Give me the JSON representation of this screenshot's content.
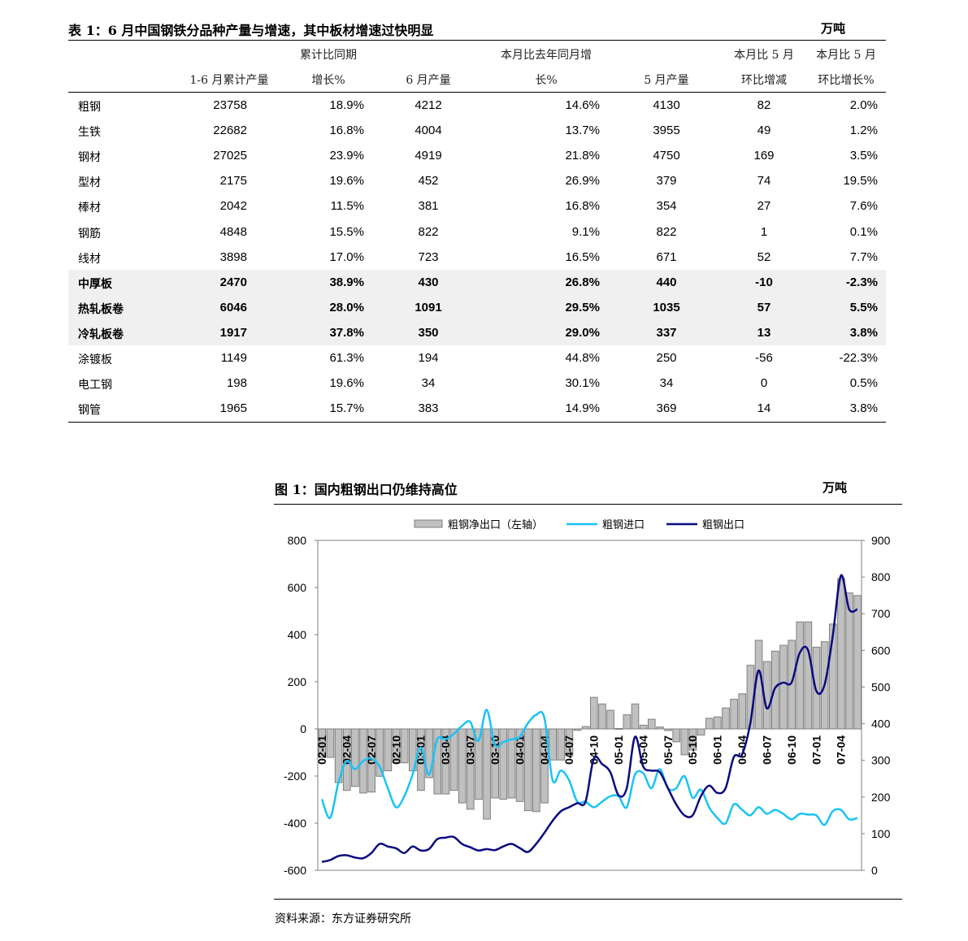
{
  "table": {
    "title": "表 1：6 月中国钢铁分品种产量与增速，其中板材增速过快明显",
    "unit": "万吨",
    "headers_top": [
      "",
      "",
      "累计比同期",
      "",
      "本月比去年同月增",
      "",
      "本月比 5 月",
      "本月比 5 月"
    ],
    "headers_bottom": [
      "",
      "1-6 月累计产量",
      "增长%",
      "6 月产量",
      "长%",
      "5 月产量",
      "环比增减",
      "环比增长%"
    ],
    "rows": [
      {
        "name": "粗钢",
        "cells": [
          "23758",
          "18.9%",
          "4212",
          "14.6%",
          "4130",
          "82",
          "2.0%"
        ],
        "highlight": false
      },
      {
        "name": "生铁",
        "cells": [
          "22682",
          "16.8%",
          "4004",
          "13.7%",
          "3955",
          "49",
          "1.2%"
        ],
        "highlight": false
      },
      {
        "name": "钢材",
        "cells": [
          "27025",
          "23.9%",
          "4919",
          "21.8%",
          "4750",
          "169",
          "3.5%"
        ],
        "highlight": false
      },
      {
        "name": "型材",
        "cells": [
          "2175",
          "19.6%",
          "452",
          "26.9%",
          "379",
          "74",
          "19.5%"
        ],
        "highlight": false
      },
      {
        "name": "棒材",
        "cells": [
          "2042",
          "11.5%",
          "381",
          "16.8%",
          "354",
          "27",
          "7.6%"
        ],
        "highlight": false
      },
      {
        "name": "钢筋",
        "cells": [
          "4848",
          "15.5%",
          "822",
          "9.1%",
          "822",
          "1",
          "0.1%"
        ],
        "highlight": false
      },
      {
        "name": "线材",
        "cells": [
          "3898",
          "17.0%",
          "723",
          "16.5%",
          "671",
          "52",
          "7.7%"
        ],
        "highlight": false
      },
      {
        "name": "中厚板",
        "cells": [
          "2470",
          "38.9%",
          "430",
          "26.8%",
          "440",
          "-10",
          "-2.3%"
        ],
        "highlight": true
      },
      {
        "name": "热轧板卷",
        "cells": [
          "6046",
          "28.0%",
          "1091",
          "29.5%",
          "1035",
          "57",
          "5.5%"
        ],
        "highlight": true
      },
      {
        "name": "冷轧板卷",
        "cells": [
          "1917",
          "37.8%",
          "350",
          "29.0%",
          "337",
          "13",
          "3.8%"
        ],
        "highlight": true
      },
      {
        "name": "涂镀板",
        "cells": [
          "1149",
          "61.3%",
          "194",
          "44.8%",
          "250",
          "-56",
          "-22.3%"
        ],
        "highlight": false
      },
      {
        "name": "电工钢",
        "cells": [
          "198",
          "19.6%",
          "34",
          "30.1%",
          "34",
          "0",
          "0.5%"
        ],
        "highlight": false
      },
      {
        "name": "钢管",
        "cells": [
          "1965",
          "15.7%",
          "383",
          "14.9%",
          "369",
          "14",
          "3.8%"
        ],
        "highlight": false
      }
    ]
  },
  "figure": {
    "title": "图 1：国内粗钢出口仍维持高位",
    "unit": "万吨",
    "source": "资料来源：东方证券研究所"
  },
  "chart_data": {
    "type": "bar+line",
    "legend_placement": "top",
    "colors": {
      "bars": "#c0c0c0",
      "bar_border": "#808080",
      "import": "#19c3f5",
      "export": "#0a0a80"
    },
    "left_axis": {
      "ylim": [
        -600,
        800
      ],
      "ticks": [
        -600,
        -400,
        -200,
        0,
        200,
        400,
        600,
        800
      ]
    },
    "right_axis": {
      "ylim": [
        0,
        900
      ],
      "ticks": [
        0,
        100,
        200,
        300,
        400,
        500,
        600,
        700,
        800,
        900
      ]
    },
    "tick_labels": [
      "02-01",
      "02-04",
      "02-07",
      "02-10",
      "03-01",
      "03-04",
      "03-07",
      "03-10",
      "04-01",
      "04-04",
      "04-07",
      "04-10",
      "05-01",
      "05-04",
      "05-07",
      "05-10",
      "06-01",
      "06-04",
      "06-07",
      "06-10",
      "07-01",
      "07-04"
    ],
    "first_month": "02-01",
    "series": [
      {
        "name": "粗钢净出口（左轴）",
        "type": "bar",
        "axis": "left",
        "values": [
          -121,
          -121,
          -228,
          -261,
          -244,
          -272,
          -268,
          -201,
          -178,
          -144,
          -144,
          -178,
          -261,
          -207,
          -276,
          -276,
          -261,
          -314,
          -341,
          -299,
          -383,
          -293,
          -299,
          -293,
          -308,
          -347,
          -351,
          -314,
          -132,
          -132,
          -115,
          -6,
          10,
          134,
          106,
          79,
          2,
          60,
          106,
          16,
          41,
          8,
          -7,
          -55,
          -110,
          -90,
          -26,
          45,
          51,
          89,
          126,
          149,
          270,
          376,
          286,
          330,
          355,
          376,
          454,
          454,
          347,
          370,
          445,
          638,
          577,
          566
        ]
      },
      {
        "name": "粗钢进口",
        "type": "line",
        "axis": "right",
        "values": [
          194,
          143,
          239,
          298,
          276,
          298,
          305,
          283,
          224,
          172,
          202,
          261,
          335,
          261,
          357,
          357,
          372,
          394,
          405,
          353,
          438,
          342,
          350,
          357,
          364,
          401,
          424,
          416,
          246,
          272,
          246,
          187,
          187,
          172,
          187,
          202,
          202,
          172,
          261,
          265,
          224,
          276,
          224,
          224,
          257,
          198,
          220,
          172,
          143,
          128,
          180,
          165,
          150,
          172,
          154,
          165,
          154,
          139,
          154,
          152,
          150,
          124,
          161,
          165,
          139,
          143
        ]
      },
      {
        "name": "粗钢出口",
        "type": "line",
        "axis": "right",
        "values": [
          23,
          28,
          39,
          41,
          35,
          33,
          47,
          72,
          65,
          60,
          47,
          65,
          54,
          58,
          85,
          89,
          91,
          72,
          63,
          54,
          58,
          55,
          65,
          72,
          61,
          50,
          72,
          102,
          135,
          161,
          172,
          183,
          187,
          305,
          290,
          268,
          205,
          224,
          364,
          283,
          272,
          268,
          224,
          180,
          150,
          150,
          202,
          231,
          211,
          224,
          309,
          316,
          401,
          545,
          442,
          497,
          512,
          512,
          593,
          601,
          490,
          505,
          638,
          804,
          712,
          712
        ]
      }
    ]
  }
}
